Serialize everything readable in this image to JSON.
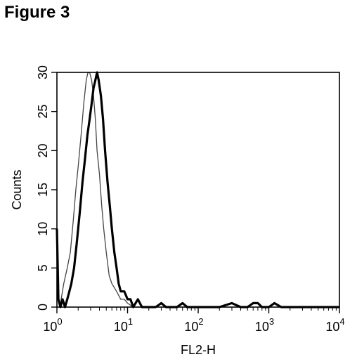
{
  "figure": {
    "title": "Figure 3"
  },
  "chart_data": {
    "type": "line",
    "title": "",
    "xlabel": "FL2-H",
    "ylabel": "Counts",
    "xscale": "log",
    "xlim": [
      1,
      10000
    ],
    "ylim": [
      0,
      30
    ],
    "grid": false,
    "legend": "none",
    "x_ticks": [
      1,
      10,
      100,
      1000,
      10000
    ],
    "x_tick_labels": [
      {
        "base": "10",
        "exp": "0"
      },
      {
        "base": "10",
        "exp": "1"
      },
      {
        "base": "10",
        "exp": "2"
      },
      {
        "base": "10",
        "exp": "3"
      },
      {
        "base": "10",
        "exp": "4"
      }
    ],
    "y_ticks": [
      0,
      5,
      10,
      15,
      20,
      25,
      30
    ],
    "series": [
      {
        "style": "thin",
        "color": "#444444",
        "x": [
          1.0,
          1.1,
          1.25,
          1.4,
          1.55,
          1.7,
          1.85,
          2.0,
          2.2,
          2.4,
          2.6,
          2.75,
          2.9,
          3.1,
          3.3,
          3.5,
          3.7,
          4.0,
          4.3,
          4.6,
          5.0,
          5.5,
          6.0,
          7.0,
          8.0,
          9.0,
          10.0,
          12.0,
          15.0,
          20.0
        ],
        "y": [
          2,
          0,
          3,
          5,
          7,
          11,
          15,
          18,
          22,
          26,
          29,
          30,
          30,
          29,
          27,
          24,
          20,
          17,
          13,
          10,
          7,
          4,
          3,
          2,
          1,
          1,
          0.5,
          0,
          0,
          0
        ]
      },
      {
        "style": "thick",
        "color": "#000000",
        "x": [
          1.0,
          1.05,
          1.12,
          1.2,
          1.3,
          1.4,
          1.5,
          1.6,
          1.75,
          1.9,
          2.1,
          2.3,
          2.5,
          2.7,
          2.9,
          3.1,
          3.3,
          3.5,
          3.7,
          3.9,
          4.2,
          4.5,
          4.8,
          5.2,
          5.6,
          6.0,
          6.5,
          7.0,
          7.5,
          8.0,
          9.0,
          10.0,
          11.0,
          12.0,
          14.0,
          16.0,
          18.0,
          20.0,
          25.0,
          30.0,
          35.0,
          40.0,
          50.0,
          60.0,
          70.0,
          100.0,
          150.0,
          200.0,
          300.0,
          400.0,
          500.0,
          600.0,
          700.0,
          800.0,
          1000.0,
          1200.0,
          1500.0,
          2000.0,
          3000.0,
          5000.0,
          10000.0
        ],
        "y": [
          10,
          1,
          0,
          1,
          0,
          1,
          2,
          3,
          5,
          8,
          12,
          16,
          19,
          22,
          24,
          26,
          28,
          29,
          30,
          29,
          27,
          24,
          20,
          16,
          13,
          10,
          7,
          5,
          3,
          2,
          2,
          1,
          1,
          0,
          1,
          0,
          0,
          0,
          0,
          0.5,
          0,
          0,
          0,
          0.5,
          0,
          0,
          0,
          0,
          0.5,
          0,
          0,
          0.5,
          0.5,
          0,
          0,
          0.5,
          0,
          0,
          0,
          0,
          0
        ]
      }
    ]
  }
}
